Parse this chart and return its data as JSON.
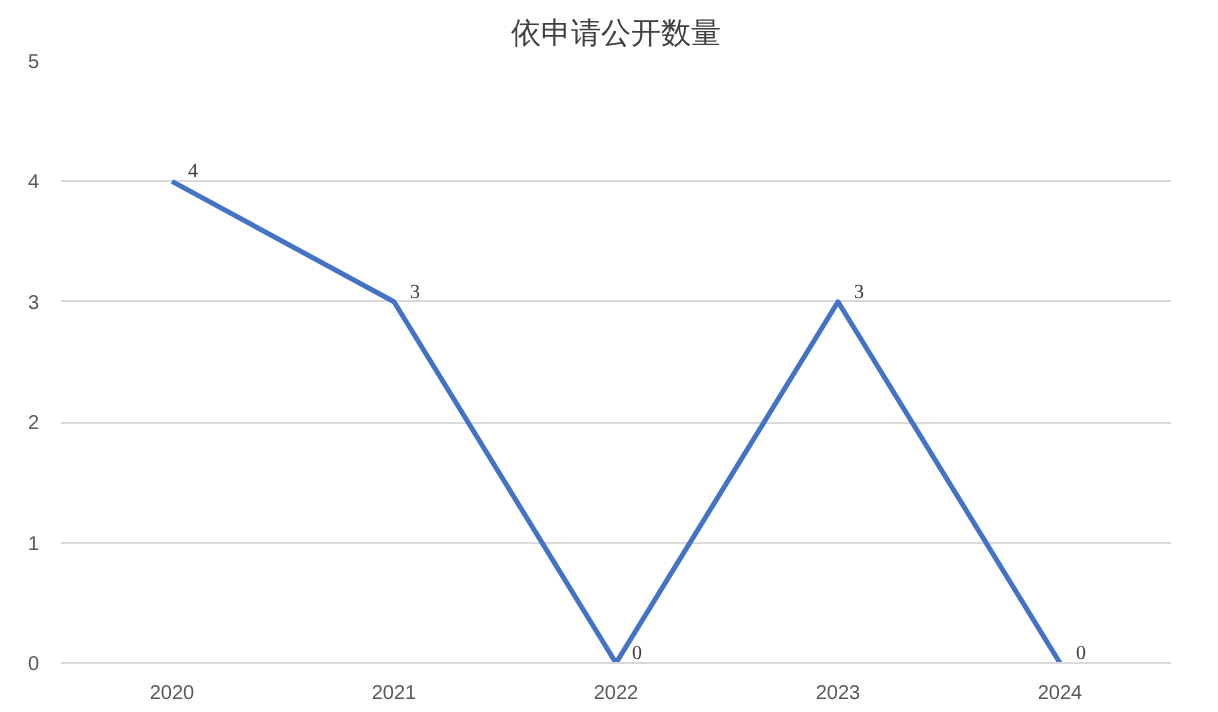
{
  "chart_data": {
    "type": "line",
    "title": "依申请公开数量",
    "categories": [
      "2020",
      "2021",
      "2022",
      "2023",
      "2024"
    ],
    "series": [
      {
        "color": "#4472c4",
        "values": [
          4,
          3,
          0,
          3,
          0
        ]
      }
    ],
    "ylim": [
      0,
      5
    ],
    "yticks": [
      0,
      1,
      2,
      3,
      4,
      5
    ],
    "grid": "y",
    "data_labels": true,
    "marker": "none",
    "line_style": "solid"
  }
}
